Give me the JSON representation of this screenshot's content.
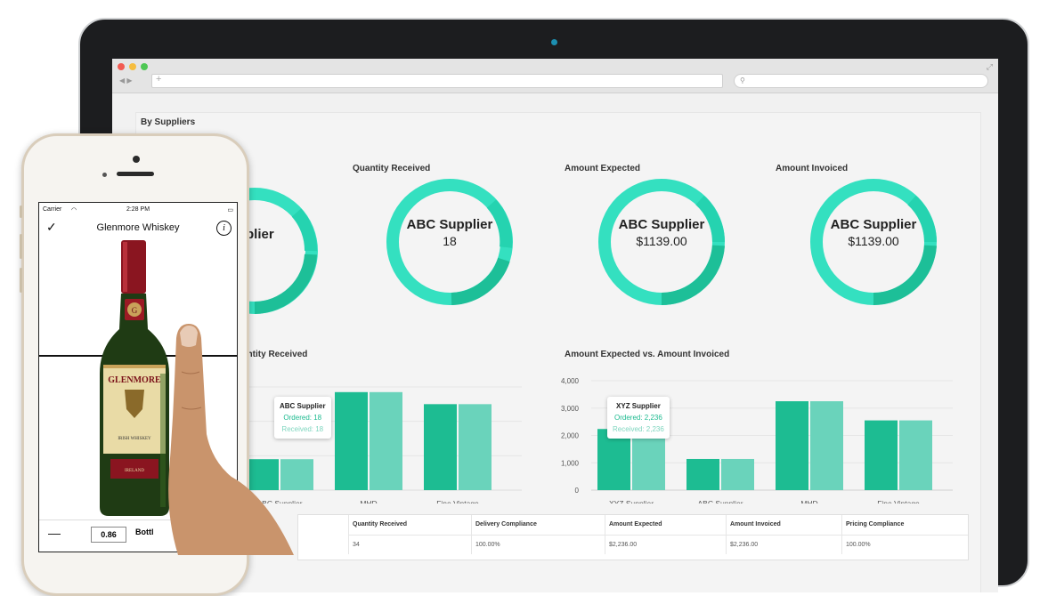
{
  "dashboard": {
    "section_title": "By Suppliers",
    "donuts": [
      {
        "title": "Quantity Received",
        "name": "ABC Supplier",
        "value": "18"
      },
      {
        "title": "Amount Expected",
        "name": "ABC Supplier",
        "value": "$1139.00"
      },
      {
        "title": "Amount Invoiced",
        "name": "ABC Supplier",
        "value": "$1139.00"
      }
    ],
    "partial_donut_label": "plier",
    "qty_chart_title": "antity Received",
    "amt_chart_title": "Amount Expected vs. Amount Invoiced",
    "qty_tooltip": {
      "title": "ABC Supplier",
      "ordered": "Ordered: 18",
      "received": "Received: 18"
    },
    "amt_tooltip": {
      "title": "XYZ Supplier",
      "ordered": "Ordered: 2,236",
      "received": "Received: 2,236"
    },
    "table": {
      "headers": [
        "Quantity Received",
        "Delivery Compliance",
        "Amount Expected",
        "Amount Invoiced",
        "Pricing Compliance"
      ],
      "row": [
        "34",
        "100.00%",
        "$2,236.00",
        "$2,236.00",
        "100.00%"
      ]
    },
    "colors": {
      "ordered": "#1dbc92",
      "received": "#6ad3bb",
      "donut_main": "#34e0c0",
      "donut_dark": "#1dbf98"
    }
  },
  "chart_data": [
    {
      "type": "bar",
      "title": "antity Received",
      "categories": [
        "ABC Supplier",
        "MHD",
        "Fine Vintage"
      ],
      "series": [
        {
          "name": "Ordered",
          "values": [
            18,
            57,
            50
          ]
        },
        {
          "name": "Received",
          "values": [
            18,
            57,
            50
          ]
        }
      ]
    },
    {
      "type": "bar",
      "title": "Amount Expected vs. Amount Invoiced",
      "categories": [
        "XYZ Supplier",
        "ABC Supplier",
        "MHD",
        "Fine Vintage"
      ],
      "yticks": [
        "0",
        "1,000",
        "2,000",
        "3,000",
        "4,000"
      ],
      "ylim": [
        0,
        4000
      ],
      "series": [
        {
          "name": "Ordered",
          "values": [
            2236,
            1139,
            3250,
            2550
          ]
        },
        {
          "name": "Received",
          "values": [
            2236,
            1139,
            3250,
            2550
          ]
        }
      ]
    }
  ],
  "phone": {
    "carrier": "Carrier",
    "time": "2:28 PM",
    "title": "Glenmore Whiskey",
    "quantity": "0.86",
    "unit": "Bottl",
    "label_brand": "GLENMORE",
    "label_type": "IRISH WHISKEY",
    "label_origin": "IRELAND"
  }
}
